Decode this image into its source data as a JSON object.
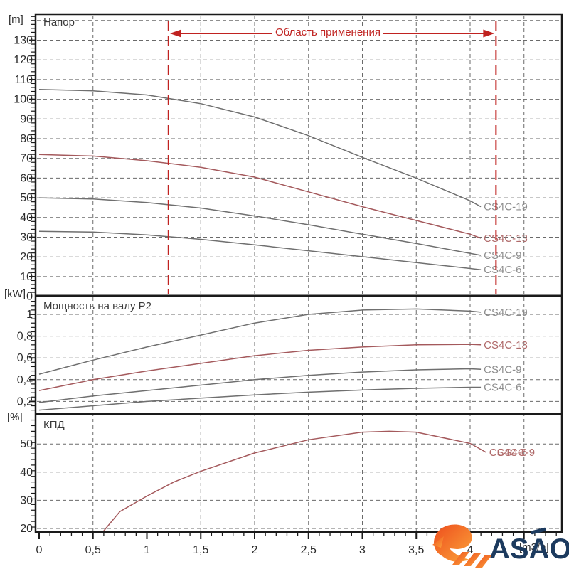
{
  "colors": {
    "curve_gray": "#6f6f6f",
    "curve_red": "#a4595c",
    "label_gray": "#8e8e8e",
    "label_red": "#b06a6a",
    "annotation_red": "#c02220",
    "grid": "#6a6a6a",
    "frame": "#1a1a1a",
    "tick_text": "#2b2b2b",
    "watermark_navy": "#1c3a5e",
    "watermark_orange": "#f05a22",
    "watermark_orange_light": "#fba33a"
  },
  "annotation": {
    "label": "Область применения",
    "x_from": 1.2,
    "x_to": 4.24
  },
  "watermark": {
    "text": "ASAO"
  },
  "chart_data": {
    "type": "line",
    "x_axis": {
      "unit_label": "[m3/h]",
      "tick_values": [
        0,
        0.5,
        1,
        1.5,
        2,
        2.5,
        3,
        3.5,
        4
      ],
      "tick_labels": [
        "0",
        "0,5",
        "1",
        "1,5",
        "2",
        "2,5",
        "3",
        "3,5",
        "4"
      ],
      "grid_values": [
        0.5,
        1,
        1.5,
        2,
        2.5,
        3,
        3.5,
        4,
        4.5
      ],
      "minor_step": 0.1,
      "xlim": [
        0,
        4.85
      ]
    },
    "panels": [
      {
        "id": "head",
        "title": "Напор",
        "unit_label": "[m]",
        "ylim": [
          0,
          143
        ],
        "y_tick_values": [
          0,
          10,
          20,
          30,
          40,
          50,
          60,
          70,
          80,
          90,
          100,
          110,
          120,
          130
        ],
        "y_tick_labels": [
          "0",
          "10",
          "20",
          "30",
          "40",
          "50",
          "60",
          "70",
          "80",
          "90",
          "100",
          "110",
          "120",
          "130"
        ],
        "grid_values": [
          10,
          20,
          30,
          40,
          50,
          60,
          70,
          80,
          90,
          100,
          110,
          120,
          130,
          140
        ],
        "minor_step": 2,
        "series": [
          {
            "name": "CS4C-19",
            "color": "gray",
            "x": [
              0,
              0.5,
              1,
              1.5,
              2,
              2.5,
              3,
              3.5,
              4,
              4.1
            ],
            "y": [
              105,
              104.3,
              102.2,
              97.8,
              91,
              81.5,
              70.5,
              60,
              48.5,
              45.5
            ],
            "labels": [
              "CS4C-19"
            ]
          },
          {
            "name": "CS4C-13",
            "color": "red",
            "x": [
              0,
              0.5,
              1,
              1.5,
              2,
              2.5,
              3,
              3.5,
              4,
              4.1
            ],
            "y": [
              72,
              71.2,
              68.8,
              65.5,
              60.5,
              53,
              45.5,
              38.5,
              31.5,
              29.5
            ],
            "labels": [
              "CS4C-13"
            ]
          },
          {
            "name": "CS4C-9",
            "color": "gray",
            "x": [
              0,
              0.5,
              1,
              1.5,
              2,
              2.5,
              3,
              3.5,
              4,
              4.1
            ],
            "y": [
              50,
              49.4,
              47.6,
              44.8,
              40.8,
              36.3,
              31.5,
              26.8,
              21.8,
              20.8
            ],
            "labels": [
              "CS4C-9"
            ]
          },
          {
            "name": "CS4C-6",
            "color": "gray",
            "x": [
              0,
              0.5,
              1,
              1.5,
              2,
              2.5,
              3,
              3.5,
              4,
              4.1
            ],
            "y": [
              33,
              32.6,
              31.2,
              28.9,
              26.1,
              23.1,
              20.1,
              17.1,
              14.1,
              13.5
            ],
            "labels": [
              "CS4C-6"
            ]
          }
        ]
      },
      {
        "id": "power",
        "title": "Мощность на валу P2",
        "unit_label": "[kW]",
        "ylim": [
          0.08,
          1.17
        ],
        "y_tick_values": [
          0.2,
          0.4,
          0.6,
          0.8,
          1
        ],
        "y_tick_labels": [
          "0,2",
          "0,4",
          "0,6",
          "0,8",
          "1"
        ],
        "grid_values": [
          0.2,
          0.4,
          0.6,
          0.8,
          1
        ],
        "minor_step": 0.04,
        "series": [
          {
            "name": "CS4C-19",
            "color": "gray",
            "x": [
              0,
              0.5,
              1,
              1.5,
              2,
              2.5,
              3,
              3.5,
              4,
              4.1
            ],
            "y": [
              0.45,
              0.58,
              0.7,
              0.81,
              0.92,
              1.0,
              1.04,
              1.05,
              1.03,
              1.02
            ],
            "labels": [
              "CS4C-19"
            ]
          },
          {
            "name": "CS4C-13",
            "color": "red",
            "x": [
              0,
              0.5,
              1,
              1.5,
              2,
              2.5,
              3,
              3.5,
              4,
              4.1
            ],
            "y": [
              0.3,
              0.4,
              0.48,
              0.55,
              0.62,
              0.67,
              0.7,
              0.72,
              0.725,
              0.72
            ],
            "labels": [
              "CS4C-13"
            ]
          },
          {
            "name": "CS4C-9",
            "color": "gray",
            "x": [
              0,
              0.5,
              1,
              1.5,
              2,
              2.5,
              3,
              3.5,
              4,
              4.1
            ],
            "y": [
              0.19,
              0.25,
              0.3,
              0.35,
              0.4,
              0.44,
              0.47,
              0.49,
              0.5,
              0.495
            ],
            "labels": [
              "CS4C-9"
            ]
          },
          {
            "name": "CS4C-6",
            "color": "gray",
            "x": [
              0,
              0.5,
              1,
              1.5,
              2,
              2.5,
              3,
              3.5,
              4,
              4.1
            ],
            "y": [
              0.12,
              0.16,
              0.2,
              0.23,
              0.26,
              0.285,
              0.305,
              0.32,
              0.33,
              0.33
            ],
            "labels": [
              "CS4C-6"
            ]
          }
        ]
      },
      {
        "id": "efficiency",
        "title": "КПД",
        "unit_label": "[%]",
        "ylim": [
          18.5,
          60.5
        ],
        "y_tick_values": [
          20,
          30,
          40,
          50
        ],
        "y_tick_labels": [
          "20",
          "30",
          "40",
          "50"
        ],
        "grid_values": [
          20,
          30,
          40,
          50
        ],
        "minor_step": 2,
        "series": [
          {
            "name": "CS4C-6/9",
            "color": "red",
            "x": [
              0.59,
              0.75,
              1,
              1.25,
              1.5,
              2,
              2.5,
              3,
              3.25,
              3.5,
              4,
              4.15
            ],
            "y": [
              18.7,
              26,
              31.5,
              36.5,
              40.3,
              46.8,
              51.5,
              54.2,
              54.5,
              54.2,
              50.2,
              47
            ],
            "labels": [
              "CS4C-6",
              "CS4C-9"
            ]
          }
        ]
      }
    ]
  }
}
